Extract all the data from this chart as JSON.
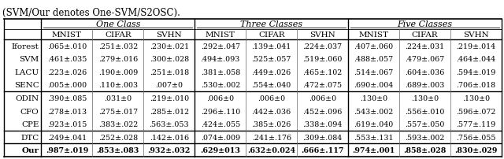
{
  "title": "(SVM/Our denotes One-SVM/S2OSC).",
  "group_headers": [
    "One Class",
    "Three Classes",
    "Five Classes"
  ],
  "col_headers": [
    "MNIST",
    "CIFAR",
    "SVHN",
    "MNIST",
    "CIFAR",
    "SVHN",
    "MNIST",
    "CIFAR",
    "SVHN"
  ],
  "rows": [
    {
      "name": "Iforest",
      "values": [
        ".065±.010",
        ".251±.032",
        ".230±.021",
        ".292±.047",
        ".139±.041",
        ".224±.037",
        ".407±.060",
        ".224±.031",
        ".219±.014"
      ],
      "bold": false
    },
    {
      "name": "SVM",
      "values": [
        ".461±.035",
        ".279±.016",
        ".300±.028",
        ".494±.093",
        ".525±.057",
        ".519±.060",
        ".488±.057",
        ".479±.067",
        ".464±.044"
      ],
      "bold": false
    },
    {
      "name": "LACU",
      "values": [
        ".223±.026",
        ".190±.009",
        ".251±.018",
        ".381±.058",
        ".449±.026",
        ".465±.102",
        ".514±.067",
        ".604±.036",
        ".594±.019"
      ],
      "bold": false
    },
    {
      "name": "SENC",
      "values": [
        ".005±.000",
        ".110±.003",
        ".007±0",
        ".530±.002",
        ".554±.040",
        ".472±.075",
        ".690±.004",
        ".689±.003",
        ".706±.018"
      ],
      "bold": false
    },
    {
      "name": "ODIN",
      "values": [
        ".390±.085",
        ".031±0",
        ".219±.010",
        ".006±0",
        ".006±0",
        ".006±0",
        ".130±0",
        ".130±0",
        ".130±0"
      ],
      "bold": false
    },
    {
      "name": "CFO",
      "values": [
        ".278±.013",
        ".275±.017",
        ".285±.012",
        ".296±.110",
        ".442±.036",
        ".452±.096",
        ".543±.002",
        ".556±.010",
        ".596±.072"
      ],
      "bold": false
    },
    {
      "name": "CPE",
      "values": [
        ".923±.015",
        ".383±.022",
        ".563±.053",
        ".424±.055",
        ".385±.026",
        ".338±.094",
        ".619±.040",
        ".557±.050",
        ".577±.119"
      ],
      "bold": false
    },
    {
      "name": "DTC",
      "values": [
        ".249±.041",
        ".252±.028",
        ".142±.016",
        ".074±.009",
        ".241±.176",
        ".309±.084",
        ".553±.131",
        ".593±.002",
        ".756±.055"
      ],
      "bold": false
    },
    {
      "name": "Our",
      "values": [
        ".987±.019",
        ".853±.083",
        ".932±.032",
        ".629±013",
        ".632±0.024",
        ".666±.117",
        ".974±.001",
        ".858±.028",
        ".830±.029"
      ],
      "bold": true
    }
  ],
  "separator_after": [
    3,
    6,
    7
  ],
  "title_fontsize": 8.5,
  "group_fontsize": 8.0,
  "header_fontsize": 7.5,
  "cell_fontsize": 6.8
}
